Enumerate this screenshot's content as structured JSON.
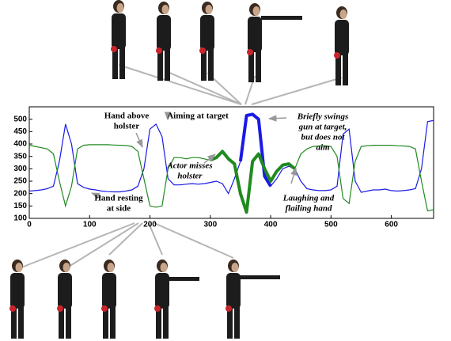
{
  "chart_data": {
    "type": "line",
    "x": [
      0,
      10,
      20,
      30,
      40,
      50,
      60,
      70,
      80,
      90,
      100,
      110,
      120,
      130,
      140,
      150,
      160,
      170,
      180,
      190,
      200,
      210,
      220,
      230,
      240,
      250,
      260,
      270,
      280,
      290,
      300,
      310,
      320,
      330,
      340,
      350,
      360,
      370,
      380,
      390,
      400,
      410,
      420,
      430,
      440,
      450,
      460,
      470,
      480,
      490,
      500,
      510,
      520,
      530,
      540,
      550,
      560,
      570,
      580,
      590,
      600,
      610,
      620,
      630,
      640,
      650,
      660,
      670
    ],
    "series": [
      {
        "color": "#1a1ae6",
        "thick_range": [
          350,
          400
        ],
        "values": [
          210,
          212,
          215,
          220,
          230,
          330,
          480,
          400,
          240,
          225,
          218,
          215,
          210,
          208,
          207,
          207,
          210,
          215,
          230,
          300,
          460,
          480,
          430,
          260,
          235,
          235,
          238,
          240,
          238,
          240,
          245,
          250,
          240,
          200,
          260,
          330,
          515,
          520,
          500,
          270,
          230,
          260,
          300,
          310,
          300,
          250,
          220,
          215,
          212,
          212,
          215,
          230,
          440,
          460,
          250,
          205,
          210,
          215,
          215,
          218,
          212,
          210,
          212,
          215,
          220,
          300,
          490,
          495
        ]
      },
      {
        "color": "#1f8a1f",
        "thick_range": [
          300,
          440
        ],
        "values": [
          395,
          390,
          385,
          380,
          360,
          250,
          150,
          230,
          380,
          395,
          397,
          397,
          397,
          397,
          396,
          395,
          394,
          390,
          370,
          260,
          150,
          145,
          150,
          300,
          345,
          345,
          340,
          345,
          345,
          340,
          335,
          345,
          370,
          340,
          320,
          200,
          125,
          330,
          360,
          300,
          250,
          290,
          315,
          320,
          300,
          360,
          380,
          390,
          392,
          393,
          390,
          350,
          180,
          160,
          330,
          390,
          393,
          395,
          395,
          395,
          395,
          393,
          392,
          390,
          380,
          250,
          130,
          135
        ]
      }
    ],
    "xlim": [
      0,
      670
    ],
    "xticks": [
      0,
      100,
      200,
      300,
      400,
      500,
      600
    ],
    "ylim": [
      100,
      550
    ],
    "yticks": [
      100,
      150,
      200,
      250,
      300,
      350,
      400,
      450,
      500
    ],
    "annotations": [
      {
        "lines": [
          "Hand above",
          "holster"
        ],
        "italic": false
      },
      {
        "lines": [
          "Aiming at target"
        ],
        "italic": false
      },
      {
        "lines": [
          "Briefly swings",
          "gun at target,",
          "but does not",
          "aim"
        ],
        "italic": true
      },
      {
        "lines": [
          "Actor misses",
          "holster"
        ],
        "italic": true
      },
      {
        "lines": [
          "Hand resting",
          "at side"
        ],
        "italic": false
      },
      {
        "lines": [
          "Laughing and",
          "flailing hand"
        ],
        "italic": true
      }
    ]
  }
}
